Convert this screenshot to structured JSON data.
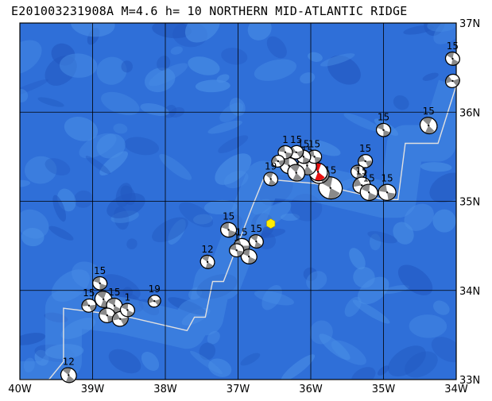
{
  "title": "E201003231908A M=4.6 h= 10 NORTHERN MID-ATLANTIC RIDGE",
  "map": {
    "lon_range": [
      -40,
      -34
    ],
    "lat_range": [
      33,
      37
    ],
    "x_ticks": [
      {
        "lon": -40,
        "label": "40W"
      },
      {
        "lon": -39,
        "label": "39W"
      },
      {
        "lon": -38,
        "label": "38W"
      },
      {
        "lon": -37,
        "label": "37W"
      },
      {
        "lon": -36,
        "label": "36W"
      },
      {
        "lon": -35,
        "label": "35W"
      },
      {
        "lon": -34,
        "label": "34W"
      }
    ],
    "y_ticks": [
      {
        "lat": 37,
        "label": "37N"
      },
      {
        "lat": 36,
        "label": "36N"
      },
      {
        "lat": 35,
        "label": "35N"
      },
      {
        "lat": 34,
        "label": "34N"
      },
      {
        "lat": 33,
        "label": "33N"
      }
    ],
    "colors": {
      "ocean": "#2f6fd8",
      "ocean_light": "#4a8fe6",
      "ocean_dark": "#2258c0",
      "grid": "#000000",
      "ridge": "#e0e0e0",
      "event_highlight": "#e81010",
      "epicenter": "#ffee00"
    },
    "ridge": [
      [
        -40.0,
        33.0
      ],
      [
        -39.6,
        33.0
      ],
      [
        -39.4,
        33.2
      ],
      [
        -39.4,
        33.8
      ],
      [
        -38.6,
        33.72
      ],
      [
        -37.7,
        33.55
      ],
      [
        -37.6,
        33.7
      ],
      [
        -37.45,
        33.7
      ],
      [
        -37.35,
        34.1
      ],
      [
        -37.2,
        34.1
      ],
      [
        -36.8,
        34.95
      ],
      [
        -36.65,
        35.25
      ],
      [
        -35.95,
        35.2
      ],
      [
        -35.0,
        35.02
      ],
      [
        -34.8,
        35.02
      ],
      [
        -34.7,
        35.65
      ],
      [
        -34.25,
        35.65
      ],
      [
        -34.0,
        36.3
      ]
    ],
    "epicenter": {
      "lon": -36.55,
      "lat": 34.75
    },
    "events": [
      {
        "lon": -34.05,
        "lat": 36.6,
        "label": "15",
        "size": 9,
        "rot": 20,
        "highlight": false
      },
      {
        "lon": -34.05,
        "lat": 36.35,
        "label": "",
        "size": 9,
        "rot": -30,
        "highlight": false
      },
      {
        "lon": -34.38,
        "lat": 35.85,
        "label": "15",
        "size": 11,
        "rot": 35,
        "highlight": false
      },
      {
        "lon": -35.0,
        "lat": 35.8,
        "label": "15",
        "size": 9,
        "rot": 10,
        "highlight": false
      },
      {
        "lon": -34.95,
        "lat": 35.1,
        "label": "15",
        "size": 11,
        "rot": 0,
        "highlight": false
      },
      {
        "lon": -35.25,
        "lat": 35.45,
        "label": "15",
        "size": 9,
        "rot": -15,
        "highlight": false
      },
      {
        "lon": -35.35,
        "lat": 35.33,
        "label": "",
        "size": 9,
        "rot": 25,
        "highlight": false
      },
      {
        "lon": -35.3,
        "lat": 35.18,
        "label": "15",
        "size": 11,
        "rot": -20,
        "highlight": false
      },
      {
        "lon": -35.2,
        "lat": 35.1,
        "label": "15",
        "size": 11,
        "rot": 15,
        "highlight": false
      },
      {
        "lon": -35.73,
        "lat": 35.15,
        "label": "15",
        "size": 15,
        "rot": 20,
        "highlight": false
      },
      {
        "lon": -35.88,
        "lat": 35.3,
        "label": "",
        "size": 12,
        "rot": -10,
        "highlight": false
      },
      {
        "lon": -35.9,
        "lat": 35.33,
        "label": "5",
        "size": 12,
        "rot": 30,
        "highlight": true
      },
      {
        "lon": -36.05,
        "lat": 35.4,
        "label": "15",
        "size": 12,
        "rot": 40,
        "highlight": false
      },
      {
        "lon": -35.95,
        "lat": 35.5,
        "label": "15",
        "size": 9,
        "rot": 0,
        "highlight": false
      },
      {
        "lon": -36.1,
        "lat": 35.5,
        "label": "15",
        "size": 9,
        "rot": 15,
        "highlight": false
      },
      {
        "lon": -36.2,
        "lat": 35.55,
        "label": "15",
        "size": 9,
        "rot": -25,
        "highlight": false
      },
      {
        "lon": -36.3,
        "lat": 35.4,
        "label": "",
        "size": 11,
        "rot": 10,
        "highlight": false
      },
      {
        "lon": -36.2,
        "lat": 35.32,
        "label": "",
        "size": 11,
        "rot": 35,
        "highlight": false
      },
      {
        "lon": -36.35,
        "lat": 35.55,
        "label": "1",
        "size": 9,
        "rot": 0,
        "highlight": false
      },
      {
        "lon": -36.45,
        "lat": 35.45,
        "label": "",
        "size": 8,
        "rot": -20,
        "highlight": false
      },
      {
        "lon": -36.55,
        "lat": 35.25,
        "label": "19",
        "size": 9,
        "rot": 30,
        "highlight": false
      },
      {
        "lon": -37.13,
        "lat": 34.68,
        "label": "15",
        "size": 10,
        "rot": 10,
        "highlight": false
      },
      {
        "lon": -36.75,
        "lat": 34.55,
        "label": "15",
        "size": 9,
        "rot": 25,
        "highlight": false
      },
      {
        "lon": -36.95,
        "lat": 34.5,
        "label": "15",
        "size": 10,
        "rot": -10,
        "highlight": false
      },
      {
        "lon": -36.85,
        "lat": 34.38,
        "label": "",
        "size": 10,
        "rot": 15,
        "highlight": false
      },
      {
        "lon": -37.02,
        "lat": 34.45,
        "label": "1",
        "size": 9,
        "rot": 0,
        "highlight": false
      },
      {
        "lon": -37.42,
        "lat": 34.32,
        "label": "12",
        "size": 9,
        "rot": 25,
        "highlight": false
      },
      {
        "lon": -38.15,
        "lat": 33.88,
        "label": "19",
        "size": 8,
        "rot": -30,
        "highlight": false
      },
      {
        "lon": -38.9,
        "lat": 34.08,
        "label": "15",
        "size": 9,
        "rot": 10,
        "highlight": false
      },
      {
        "lon": -39.05,
        "lat": 33.83,
        "label": "15",
        "size": 9,
        "rot": -15,
        "highlight": false
      },
      {
        "lon": -38.85,
        "lat": 33.9,
        "label": "",
        "size": 11,
        "rot": 30,
        "highlight": false
      },
      {
        "lon": -38.7,
        "lat": 33.83,
        "label": "15",
        "size": 10,
        "rot": 20,
        "highlight": false
      },
      {
        "lon": -38.8,
        "lat": 33.72,
        "label": "",
        "size": 10,
        "rot": 0,
        "highlight": false
      },
      {
        "lon": -38.62,
        "lat": 33.68,
        "label": "",
        "size": 10,
        "rot": -20,
        "highlight": false
      },
      {
        "lon": -38.52,
        "lat": 33.78,
        "label": "1",
        "size": 9,
        "rot": 15,
        "highlight": false
      },
      {
        "lon": -39.33,
        "lat": 33.05,
        "label": "12",
        "size": 10,
        "rot": 30,
        "highlight": false
      }
    ]
  }
}
